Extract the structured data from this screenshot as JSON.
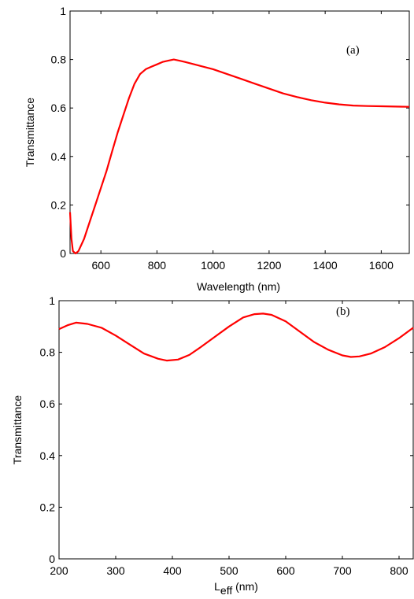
{
  "chart_data": [
    {
      "type": "line",
      "panel_label": "(a)",
      "xlabel": "Wavelength (nm)",
      "ylabel": "Transmittance",
      "xlim": [
        490,
        1700
      ],
      "ylim": [
        0,
        1
      ],
      "xticks": [
        600,
        800,
        1000,
        1200,
        1400,
        1600
      ],
      "yticks": [
        0,
        0.2,
        0.4,
        0.6,
        0.8,
        1
      ],
      "ytick_labels": [
        "0",
        "0.2",
        "0.4",
        "0.6",
        "0.8",
        "1"
      ],
      "grid": false,
      "line_color": "#ff0000",
      "series": [
        {
          "x": [
            490,
            495,
            500,
            505,
            510,
            520,
            540,
            560,
            580,
            600,
            620,
            640,
            660,
            680,
            700,
            720,
            740,
            760,
            780,
            800,
            820,
            840,
            860,
            880,
            900,
            950,
            1000,
            1050,
            1100,
            1150,
            1200,
            1250,
            1300,
            1350,
            1400,
            1450,
            1500,
            1550,
            1600,
            1650,
            1700
          ],
          "y": [
            0.17,
            0.06,
            0.01,
            0.005,
            0.0,
            0.01,
            0.06,
            0.13,
            0.2,
            0.27,
            0.34,
            0.42,
            0.5,
            0.57,
            0.64,
            0.7,
            0.74,
            0.76,
            0.77,
            0.78,
            0.79,
            0.795,
            0.8,
            0.795,
            0.79,
            0.775,
            0.76,
            0.74,
            0.72,
            0.7,
            0.68,
            0.66,
            0.645,
            0.632,
            0.622,
            0.615,
            0.61,
            0.608,
            0.607,
            0.606,
            0.605
          ]
        }
      ]
    },
    {
      "type": "line",
      "panel_label": "(b)",
      "xlabel_main": "L",
      "xlabel_sub": "eff",
      "xlabel_unit": " (nm)",
      "ylabel": "Transmittance",
      "xlim": [
        200,
        825
      ],
      "ylim": [
        0,
        1
      ],
      "xticks": [
        200,
        300,
        400,
        500,
        600,
        700,
        800
      ],
      "yticks": [
        0,
        0.2,
        0.4,
        0.6,
        0.8,
        1
      ],
      "ytick_labels": [
        "0",
        "0.2",
        "0.4",
        "0.6",
        "0.8",
        "1"
      ],
      "grid": false,
      "line_color": "#ff0000",
      "series": [
        {
          "x": [
            200,
            215,
            230,
            250,
            275,
            300,
            325,
            350,
            375,
            390,
            410,
            430,
            450,
            475,
            500,
            525,
            545,
            560,
            575,
            600,
            625,
            650,
            675,
            700,
            715,
            730,
            750,
            775,
            800,
            825
          ],
          "y": [
            0.89,
            0.905,
            0.915,
            0.91,
            0.895,
            0.865,
            0.83,
            0.795,
            0.775,
            0.768,
            0.772,
            0.79,
            0.82,
            0.86,
            0.9,
            0.935,
            0.948,
            0.95,
            0.945,
            0.92,
            0.88,
            0.84,
            0.81,
            0.788,
            0.782,
            0.784,
            0.795,
            0.82,
            0.855,
            0.895
          ]
        }
      ]
    }
  ]
}
